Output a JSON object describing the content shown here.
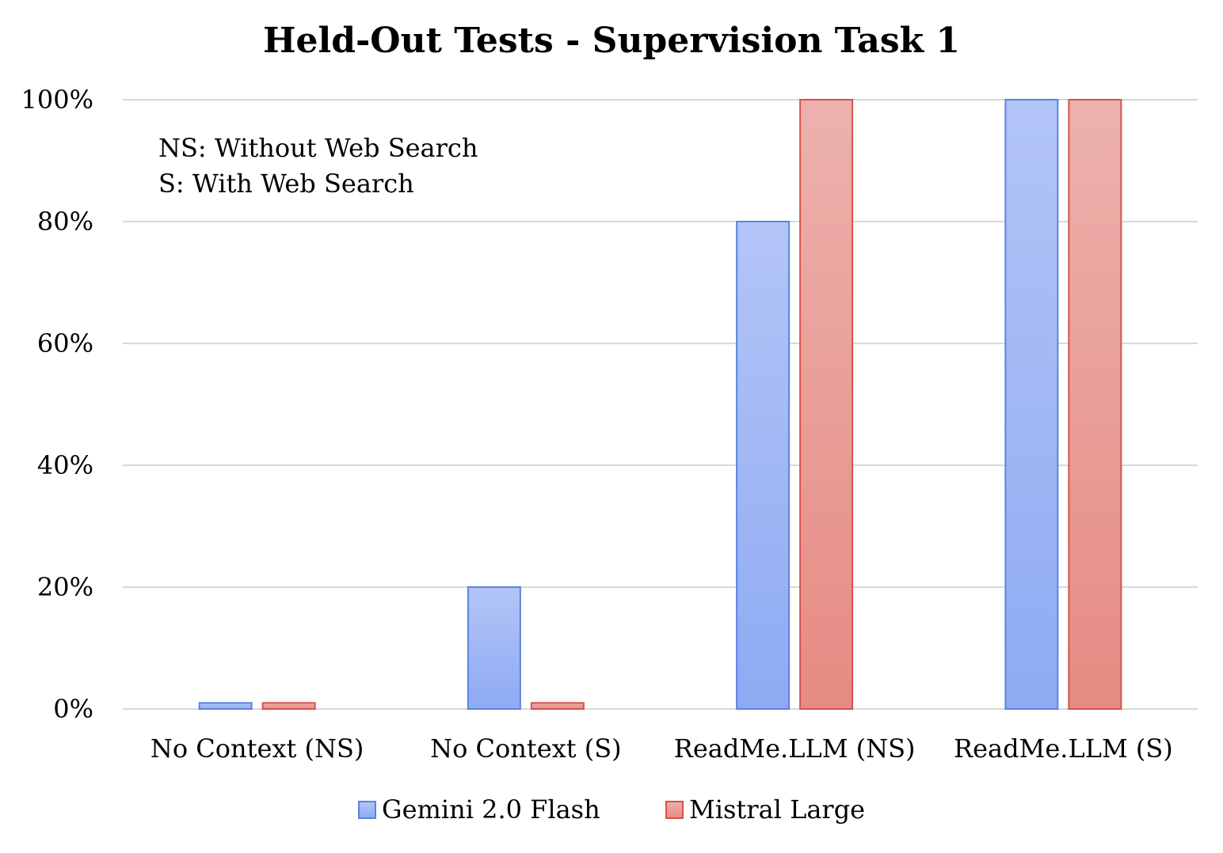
{
  "chart_data": {
    "type": "bar",
    "title": "Held-Out Tests - Supervision Task 1",
    "categories": [
      "No Context (NS)",
      "No Context (S)",
      "ReadMe.LLM (NS)",
      "ReadMe.LLM (S)"
    ],
    "series": [
      {
        "name": "Gemini 2.0 Flash",
        "values": [
          1,
          20,
          80,
          100
        ],
        "color": "#5b83e0",
        "fill_top": "#b3c5f7",
        "fill_bottom": "#8eaaf3"
      },
      {
        "name": "Mistral Large",
        "values": [
          1,
          1,
          100,
          100
        ],
        "color": "#d9524c",
        "fill_top": "#edb1ad",
        "fill_bottom": "#e68b83"
      }
    ],
    "ylim": [
      0,
      100
    ],
    "yticks": [
      "0%",
      "20%",
      "40%",
      "60%",
      "80%",
      "100%"
    ],
    "grid": true,
    "legend_position": "bottom",
    "annotations": [
      "NS: Without Web Search",
      "S: With Web Search"
    ],
    "xlabel": "",
    "ylabel": ""
  }
}
